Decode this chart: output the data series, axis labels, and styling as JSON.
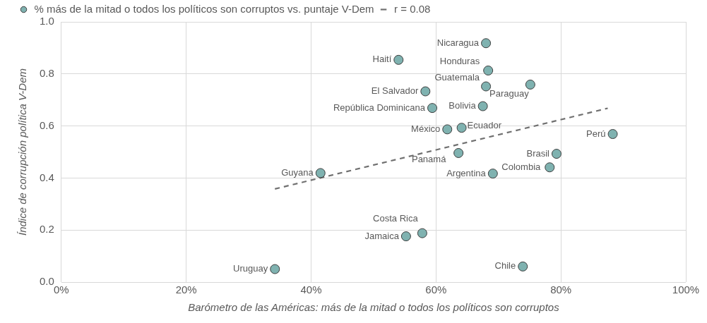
{
  "chart_data": {
    "type": "scatter",
    "xlabel": "Barómetro de las Américas: más de la mitad o todos los políticos son corruptos",
    "ylabel": "Índice de corrupción política V-Dem",
    "xlim": [
      0,
      100
    ],
    "xticks": [
      {
        "value": 0,
        "label": "0%"
      },
      {
        "value": 20,
        "label": "20%"
      },
      {
        "value": 40,
        "label": "40%"
      },
      {
        "value": 60,
        "label": "60%"
      },
      {
        "value": 80,
        "label": "80%"
      },
      {
        "value": 100,
        "label": "100%"
      }
    ],
    "ylim": [
      0,
      1
    ],
    "yticks": [
      {
        "value": 0,
        "label": "0.0"
      },
      {
        "value": 0.2,
        "label": "0.2"
      },
      {
        "value": 0.4,
        "label": "0.4"
      },
      {
        "value": 0.6,
        "label": "0.6"
      },
      {
        "value": 0.8,
        "label": "0.8"
      },
      {
        "value": 1,
        "label": "1.0"
      }
    ],
    "grid": true,
    "legend": "top",
    "marker": "circle",
    "series": [
      {
        "name": "% más de la mitad o todos los políticos son corruptos vs. puntaje V-Dem",
        "color": "#7fb2b0",
        "x": [
          68.0,
          54.0,
          68.35,
          68.0,
          75.1,
          58.3,
          59.4,
          67.5,
          61.8,
          64.1,
          63.6,
          41.5,
          69.1,
          78.2,
          79.3,
          57.8,
          55.2,
          34.2,
          73.9,
          88.3
        ],
        "values": [
          0.918,
          0.854,
          0.813,
          0.752,
          0.759,
          0.733,
          0.669,
          0.676,
          0.587,
          0.593,
          0.496,
          0.419,
          0.417,
          0.441,
          0.493,
          0.188,
          0.176,
          0.05,
          0.06,
          0.569
        ]
      },
      {
        "name": "r = 0.08",
        "type": "line",
        "color": "#707070",
        "line_style": "dashed",
        "marker": "none",
        "x": [
          34.2,
          87.5
        ],
        "values": [
          0.358,
          0.668
        ]
      }
    ],
    "annotations": [
      {
        "text": "Nicaragua",
        "x": 68.0,
        "y": 0.918
      },
      {
        "text": "Haití",
        "x": 54.0,
        "y": 0.854
      },
      {
        "text": "Honduras",
        "x": 68.35,
        "y": 0.813
      },
      {
        "text": "Guatemala",
        "x": 68.0,
        "y": 0.752
      },
      {
        "text": "Paraguay",
        "x": 75.1,
        "y": 0.759
      },
      {
        "text": "El Salvador",
        "x": 58.3,
        "y": 0.733
      },
      {
        "text": "República Dominicana",
        "x": 59.4,
        "y": 0.669
      },
      {
        "text": "Bolivia",
        "x": 67.5,
        "y": 0.676
      },
      {
        "text": "México",
        "x": 61.8,
        "y": 0.587
      },
      {
        "text": "Ecuador",
        "x": 64.1,
        "y": 0.593
      },
      {
        "text": "Panamá",
        "x": 63.6,
        "y": 0.496
      },
      {
        "text": "Guyana",
        "x": 41.5,
        "y": 0.419
      },
      {
        "text": "Argentina",
        "x": 69.1,
        "y": 0.417
      },
      {
        "text": "Colombia",
        "x": 78.2,
        "y": 0.441
      },
      {
        "text": "Brasil",
        "x": 79.3,
        "y": 0.493
      },
      {
        "text": "Costa Rica",
        "x": 57.8,
        "y": 0.188
      },
      {
        "text": "Jamaica",
        "x": 55.2,
        "y": 0.176
      },
      {
        "text": "Uruguay",
        "x": 34.2,
        "y": 0.05
      },
      {
        "text": "Chile",
        "x": 73.9,
        "y": 0.06
      },
      {
        "text": "Perú",
        "x": 88.3,
        "y": 0.569
      }
    ]
  }
}
